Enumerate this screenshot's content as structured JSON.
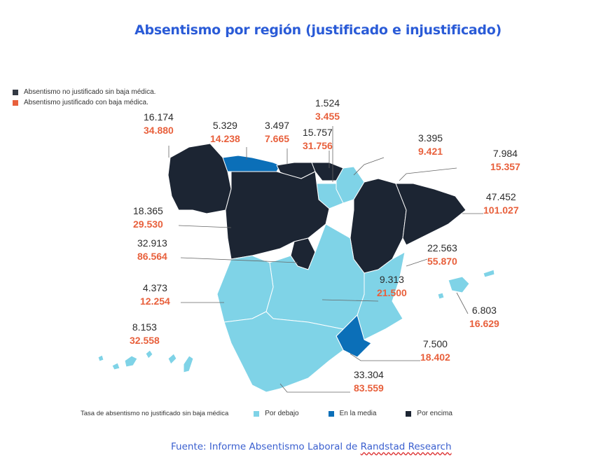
{
  "title": "Absentismo por región (justificado e injustificado)",
  "legend": {
    "unjustified": "Absentismo no justificado sin baja médica.",
    "justified": "Absentismo justificado con baja médica."
  },
  "colors": {
    "above": "#1c2533",
    "average": "#0b6fb8",
    "below": "#7fd3e7",
    "justified_text": "#e8603c",
    "title": "#2a5bd7"
  },
  "regions": [
    {
      "id": "galicia",
      "unjustified": "16.174",
      "justified": "34.880",
      "category": "above"
    },
    {
      "id": "asturias",
      "unjustified": "5.329",
      "justified": "14.238",
      "category": "average"
    },
    {
      "id": "cantabria",
      "unjustified": "3.497",
      "justified": "7.665",
      "category": "above"
    },
    {
      "id": "pais-vasco",
      "unjustified": "15.757",
      "justified": "31.756",
      "category": "above"
    },
    {
      "id": "la-rioja",
      "unjustified": "1.524",
      "justified": "3.455",
      "category": "below"
    },
    {
      "id": "navarra",
      "unjustified": "3.395",
      "justified": "9.421",
      "category": "below"
    },
    {
      "id": "aragon",
      "unjustified": "7.984",
      "justified": "15.357",
      "category": "above"
    },
    {
      "id": "cataluna",
      "unjustified": "47.452",
      "justified": "101.027",
      "category": "above"
    },
    {
      "id": "castilla-leon",
      "unjustified": "18.365",
      "justified": "29.530",
      "category": "above"
    },
    {
      "id": "madrid",
      "unjustified": "32.913",
      "justified": "86.564",
      "category": "above"
    },
    {
      "id": "valencia",
      "unjustified": "22.563",
      "justified": "55.870",
      "category": "below"
    },
    {
      "id": "castilla-la-mancha",
      "unjustified": "9.313",
      "justified": "21.500",
      "category": "below"
    },
    {
      "id": "extremadura",
      "unjustified": "4.373",
      "justified": "12.254",
      "category": "below"
    },
    {
      "id": "baleares",
      "unjustified": "6.803",
      "justified": "16.629",
      "category": "below"
    },
    {
      "id": "canarias",
      "unjustified": "8.153",
      "justified": "32.558",
      "category": "below"
    },
    {
      "id": "murcia",
      "unjustified": "7.500",
      "justified": "18.402",
      "category": "average"
    },
    {
      "id": "andalucia",
      "unjustified": "33.304",
      "justified": "83.559",
      "category": "below"
    }
  ],
  "scale": {
    "label": "Tasa de absentismo no justificado sin baja médica",
    "below": "Por debajo",
    "average": "En la media",
    "above": "Por encima"
  },
  "source": {
    "prefix": "Fuente: Informe Absentismo Laboral de ",
    "org": "Randstad Research"
  }
}
